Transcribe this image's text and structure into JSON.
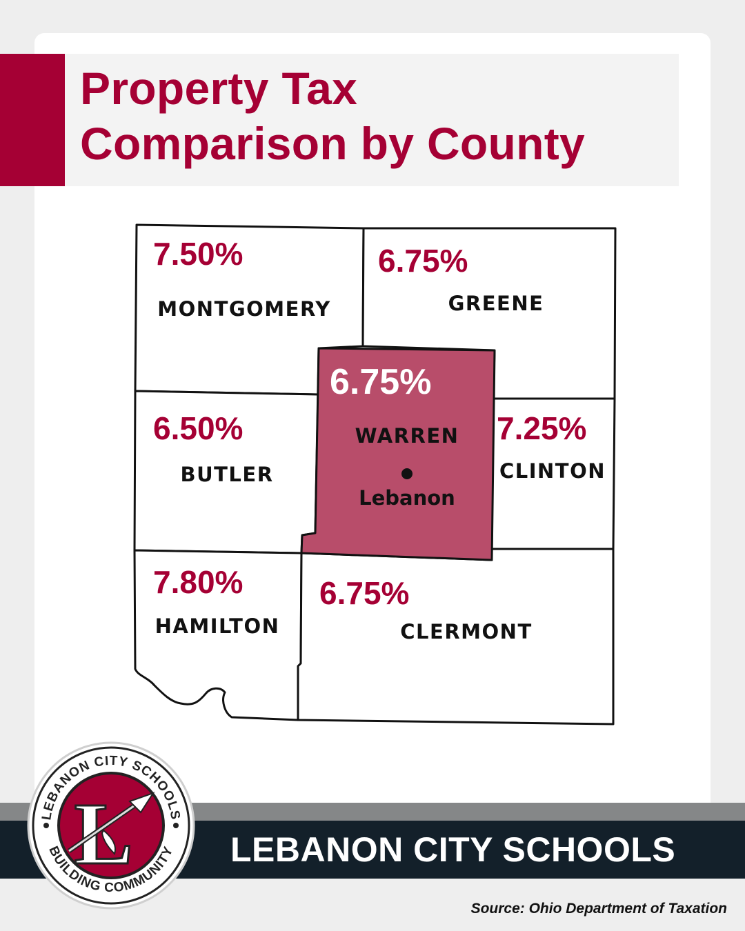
{
  "header": {
    "title_line1": "Property Tax",
    "title_line2": "Comparison by County"
  },
  "colors": {
    "brand": "#a50034",
    "highlight": "#b84d6a",
    "dark_band": "#13202a",
    "gray_band": "#858788"
  },
  "map": {
    "counties": [
      {
        "name": "MONTGOMERY",
        "rate": "7.50%"
      },
      {
        "name": "GREENE",
        "rate": "6.75%"
      },
      {
        "name": "BUTLER",
        "rate": "6.50%"
      },
      {
        "name": "WARREN",
        "rate": "6.75%",
        "highlighted": true
      },
      {
        "name": "CLINTON",
        "rate": "7.25%"
      },
      {
        "name": "HAMILTON",
        "rate": "7.80%"
      },
      {
        "name": "CLERMONT",
        "rate": "6.75%"
      }
    ],
    "city": "Lebanon"
  },
  "logo": {
    "ring_top": "LEBANON CITY SCHOOLS",
    "ring_bottom": "BUILDING COMMUNITY",
    "letter": "L"
  },
  "footer": {
    "banner": "LEBANON CITY SCHOOLS",
    "source": "Source: Ohio Department of Taxation"
  }
}
